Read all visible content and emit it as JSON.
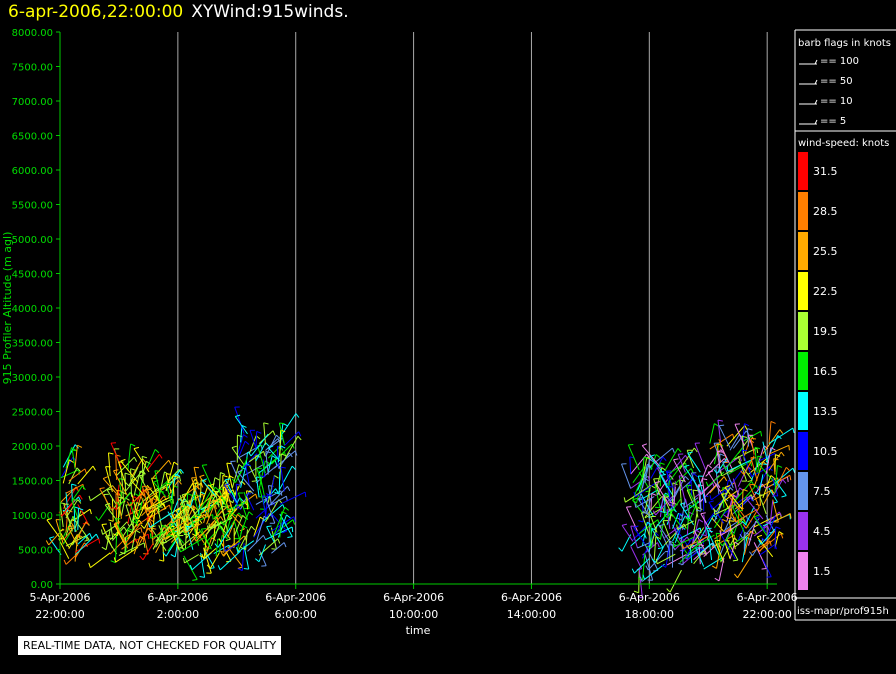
{
  "header": {
    "date": "6-apr-2006,22:00:00",
    "name": "XYWind:915winds."
  },
  "disclaimer": "REAL-TIME DATA, NOT CHECKED FOR QUALITY",
  "source_label": "iss-mapr/prof915h",
  "colors": {
    "axis": "#00cc00",
    "grid": "#aaaaaa",
    "label": "#ffffff",
    "ylabel": "#00dd00"
  },
  "chart_data": {
    "type": "scatter",
    "ylabel": "915 Profiler Altitude (m agl)",
    "xlabel": "time",
    "ylim": [
      0,
      8000
    ],
    "xlim": [
      "2006-04-05 22:00",
      "2006-04-06 22:20"
    ],
    "x_ticks": [
      {
        "line1": "5-Apr-2006",
        "line2": "22:00:00",
        "t": "2006-04-05 22:00"
      },
      {
        "line1": "6-Apr-2006",
        "line2": "2:00:00",
        "t": "2006-04-06 02:00"
      },
      {
        "line1": "6-Apr-2006",
        "line2": "6:00:00",
        "t": "2006-04-06 06:00"
      },
      {
        "line1": "6-Apr-2006",
        "line2": "10:00:00",
        "t": "2006-04-06 10:00"
      },
      {
        "line1": "6-Apr-2006",
        "line2": "14:00:00",
        "t": "2006-04-06 14:00"
      },
      {
        "line1": "6-Apr-2006",
        "line2": "18:00:00",
        "t": "2006-04-06 18:00"
      },
      {
        "line1": "6-Apr-2006",
        "line2": "22:00:00",
        "t": "2006-04-06 22:00"
      }
    ],
    "y_ticks": [
      "0.00",
      "500.00",
      "1000.00",
      "1500.00",
      "2000.00",
      "2500.00",
      "3000.00",
      "3500.00",
      "4000.00",
      "4500.00",
      "5000.00",
      "5500.00",
      "6000.00",
      "6500.00",
      "7000.00",
      "7500.00",
      "8000.00"
    ],
    "grid": true,
    "barb_legend": {
      "title": "barb flags in knots",
      "items": [
        "== 100",
        "== 50",
        "== 10",
        "== 5"
      ]
    },
    "colorbar": {
      "title": "wind-speed: knots",
      "levels": [
        {
          "label": "31.5",
          "color": "#ff0000"
        },
        {
          "label": "28.5",
          "color": "#ff7f00"
        },
        {
          "label": "25.5",
          "color": "#ffaa00"
        },
        {
          "label": "22.5",
          "color": "#ffff00"
        },
        {
          "label": "19.5",
          "color": "#aaff33"
        },
        {
          "label": "16.5",
          "color": "#00ee00"
        },
        {
          "label": "13.5",
          "color": "#00ffff"
        },
        {
          "label": "10.5",
          "color": "#0000ff"
        },
        {
          "label": "7.5",
          "color": "#6495ed"
        },
        {
          "label": "4.5",
          "color": "#9932ee"
        },
        {
          "label": "1.5",
          "color": "#ee82ee"
        }
      ]
    },
    "series": [
      {
        "time_range": [
          "2006-04-05 22:00",
          "2006-04-05 22:40"
        ],
        "alt_range": [
          300,
          1700
        ],
        "speed_range": [
          10,
          32
        ]
      },
      {
        "time_range": [
          "2006-04-05 23:40",
          "2006-04-06 01:20"
        ],
        "alt_range": [
          400,
          1700
        ],
        "speed_range": [
          16,
          31
        ]
      },
      {
        "time_range": [
          "2006-04-06 01:20",
          "2006-04-06 04:00"
        ],
        "alt_range": [
          400,
          1400
        ],
        "speed_range": [
          14,
          27
        ]
      },
      {
        "time_range": [
          "2006-04-06 04:00",
          "2006-04-06 05:40"
        ],
        "alt_range": [
          400,
          2200
        ],
        "speed_range": [
          6,
          22
        ]
      },
      {
        "time_range": [
          "2006-04-06 17:20",
          "2006-04-06 20:00"
        ],
        "alt_range": [
          200,
          1700
        ],
        "speed_range": [
          1,
          20
        ]
      },
      {
        "time_range": [
          "2006-04-06 20:00",
          "2006-04-06 22:20"
        ],
        "alt_range": [
          300,
          2100
        ],
        "speed_range": [
          1,
          30
        ]
      }
    ]
  }
}
